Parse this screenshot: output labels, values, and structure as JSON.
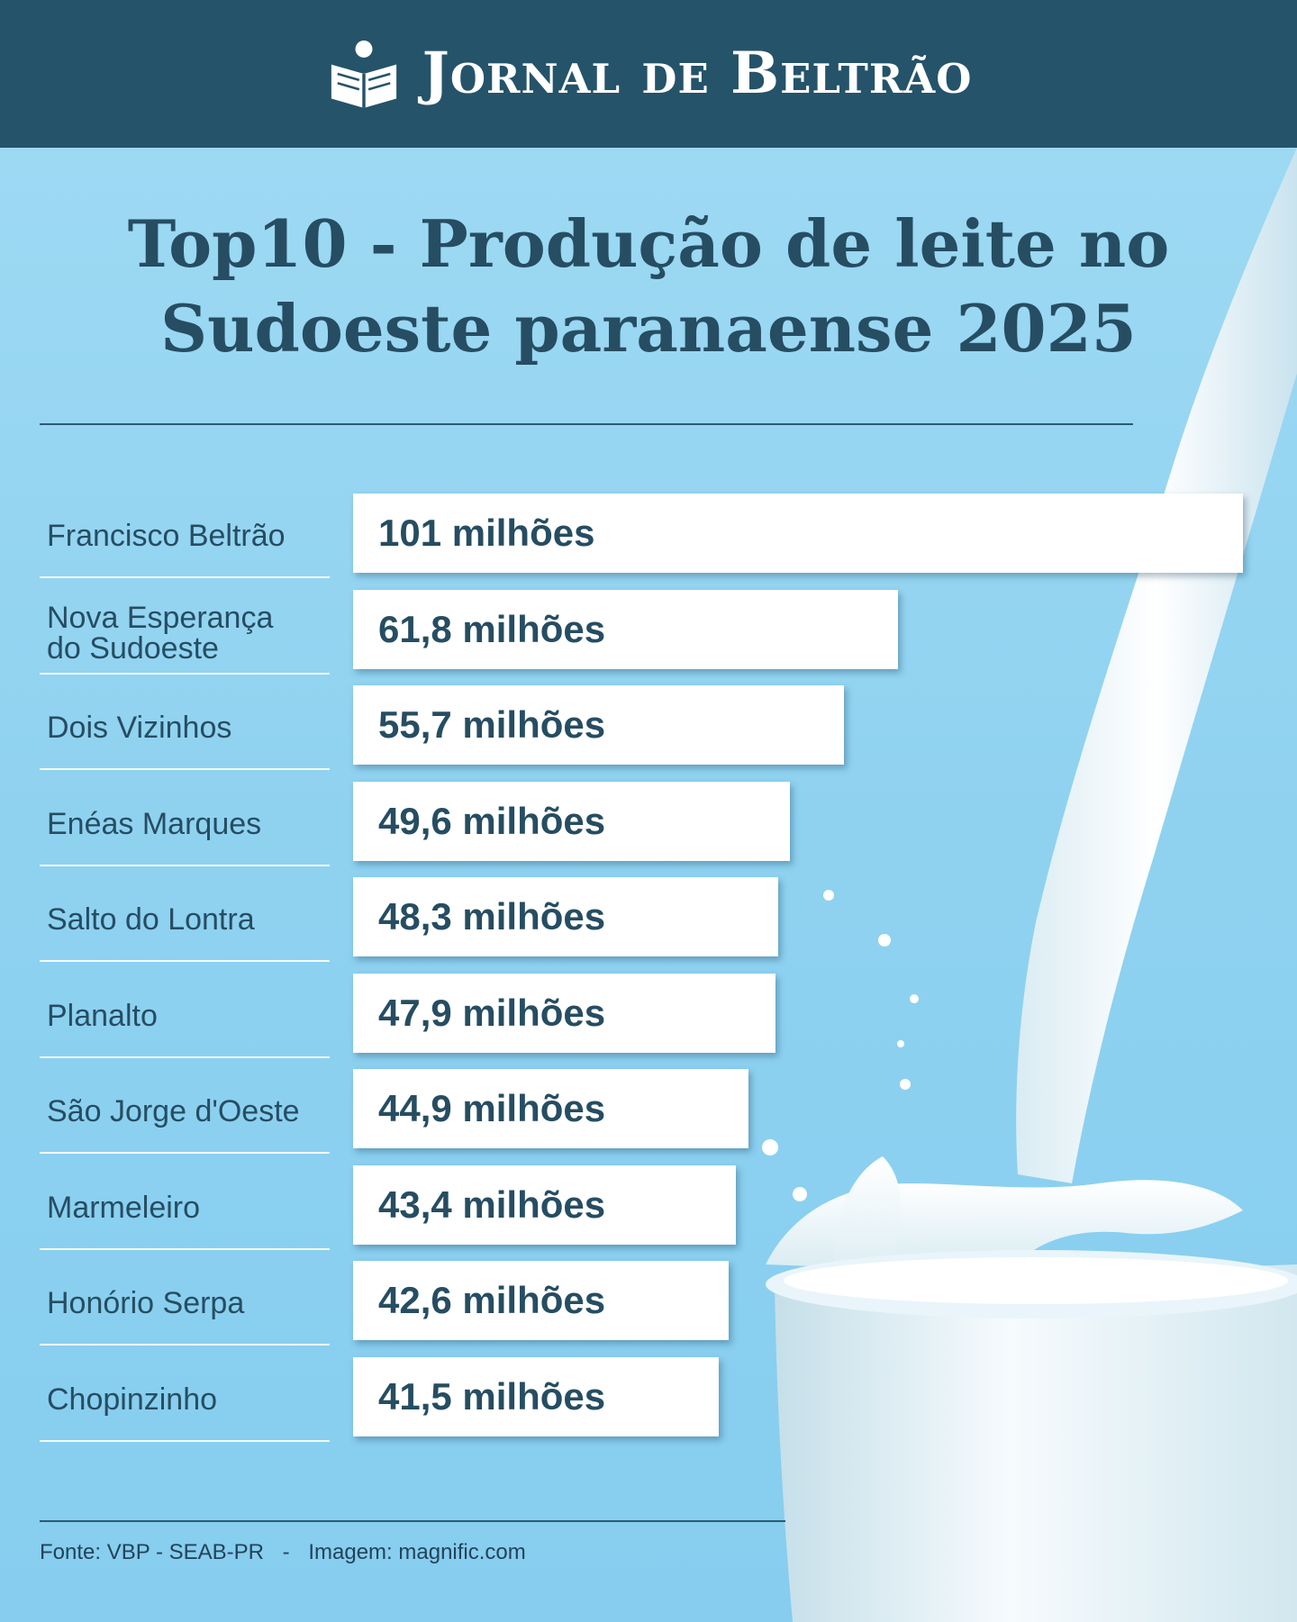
{
  "header": {
    "brand_name": "Jornal de Beltrão",
    "logo_icon": "open-book-icon",
    "background_color": "#25536a"
  },
  "title": {
    "line1": "Top10 - Produção de leite no",
    "line2": "Sudoeste paranaense 2025"
  },
  "chart_data": {
    "type": "bar",
    "orientation": "horizontal",
    "title": "Top10 - Produção de leite no Sudoeste paranaense 2025",
    "categories": [
      "Francisco Beltrão",
      "Nova Esperança do Sudoeste",
      "Dois Vizinhos",
      "Enéas Marques",
      "Salto do Lontra",
      "Planalto",
      "São Jorge d'Oeste",
      "Marmeleiro",
      "Honório Serpa",
      "Chopinzinho"
    ],
    "category_lines": [
      [
        "Francisco Beltrão"
      ],
      [
        "Nova Esperança",
        "do Sudoeste"
      ],
      [
        "Dois Vizinhos"
      ],
      [
        "Enéas Marques"
      ],
      [
        "Salto do Lontra"
      ],
      [
        "Planalto"
      ],
      [
        "São Jorge d'Oeste"
      ],
      [
        "Marmeleiro"
      ],
      [
        "Honório Serpa"
      ],
      [
        "Chopinzinho"
      ]
    ],
    "values": [
      101,
      61.8,
      55.7,
      49.6,
      48.3,
      47.9,
      44.9,
      43.4,
      42.6,
      41.5
    ],
    "data_labels": [
      "101 milhões",
      "61,8 milhões",
      "55,7 milhões",
      "49,6 milhões",
      "48,3 milhões",
      "47,9 milhões",
      "44,9 milhões",
      "43,4 milhões",
      "42,6 milhões",
      "41,5 milhões"
    ],
    "unit": "milhões",
    "grid": false,
    "legend": "none",
    "bar_color": "#ffffff",
    "text_color": "#264d62",
    "background_color": "#8fd2f0"
  },
  "footer": {
    "source": "Fonte: VBP - SEAB-PR",
    "separator": "-",
    "image_credit": "Imagem: magnific.com"
  }
}
